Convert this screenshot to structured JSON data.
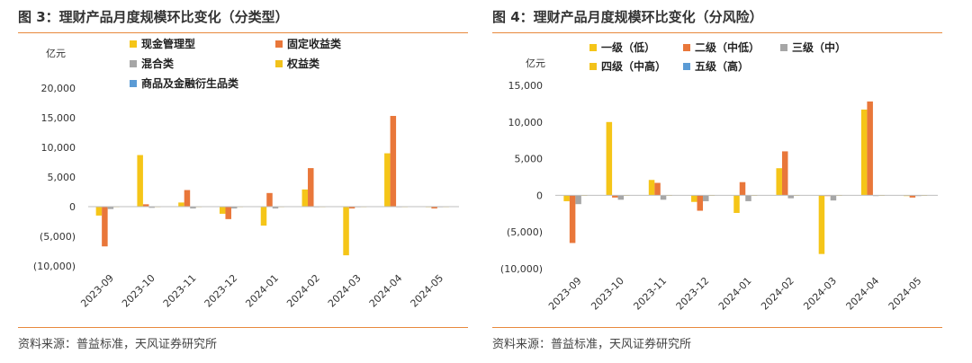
{
  "left_panel": {
    "title": "图 3：理财产品月度规模环比变化（分类型）",
    "source": "资料来源：普益标准，天风证券研究所"
  },
  "right_panel": {
    "title": "图 4：理财产品月度规模环比变化（分风险）",
    "source": "资料来源：普益标准，天风证券研究所"
  },
  "chart_data": [
    {
      "type": "bar",
      "ylabel": "亿元",
      "ylim": [
        -10000,
        20000
      ],
      "yticks": [
        20000,
        15000,
        10000,
        5000,
        0,
        -5000,
        -10000
      ],
      "ytick_labels": [
        "20,000",
        "15,000",
        "10,000",
        "5,000",
        "0",
        "(5,000)",
        "(10,000)"
      ],
      "categories": [
        "2023-09",
        "2023-10",
        "2023-11",
        "2023-12",
        "2024-01",
        "2024-02",
        "2024-03",
        "2024-04",
        "2024-05"
      ],
      "grid": false,
      "legend_position": "top",
      "series": [
        {
          "name": "现金管理型",
          "color": "#f5c518",
          "values": [
            -1500,
            8700,
            700,
            -1200,
            -3200,
            2900,
            -8200,
            9000,
            -100
          ]
        },
        {
          "name": "固定收益类",
          "color": "#e9773a",
          "values": [
            -6700,
            400,
            2800,
            -2100,
            2300,
            6500,
            -300,
            15300,
            -300
          ]
        },
        {
          "name": "混合类",
          "color": "#a6a6a6",
          "values": [
            -400,
            -200,
            -300,
            -300,
            -300,
            -100,
            -100,
            -100,
            -100
          ]
        },
        {
          "name": "权益类",
          "color": "#f2c21b",
          "values": [
            -20,
            -20,
            -20,
            -20,
            -20,
            -20,
            -20,
            -20,
            -20
          ]
        },
        {
          "name": "商品及金融衍生品类",
          "color": "#5b9bd5",
          "values": [
            0,
            0,
            0,
            0,
            0,
            0,
            0,
            0,
            0
          ]
        }
      ]
    },
    {
      "type": "bar",
      "ylabel": "亿元",
      "ylim": [
        -10000,
        15000
      ],
      "yticks": [
        15000,
        10000,
        5000,
        0,
        -5000,
        -10000
      ],
      "ytick_labels": [
        "15,000",
        "10,000",
        "5,000",
        "0",
        "(5,000)",
        "(10,000)"
      ],
      "categories": [
        "2023-09",
        "2023-10",
        "2023-11",
        "2023-12",
        "2024-01",
        "2024-02",
        "2024-03",
        "2024-04",
        "2024-05"
      ],
      "grid": false,
      "legend_position": "top",
      "series": [
        {
          "name": "一级（低）",
          "color": "#f5c518",
          "values": [
            -800,
            10000,
            2100,
            -900,
            -2400,
            3700,
            -8000,
            11700,
            -100
          ]
        },
        {
          "name": "二级（中低）",
          "color": "#e9773a",
          "values": [
            -6500,
            -300,
            1700,
            -2100,
            1800,
            6000,
            -100,
            12800,
            -300
          ]
        },
        {
          "name": "三级（中）",
          "color": "#a6a6a6",
          "values": [
            -1200,
            -600,
            -600,
            -800,
            -800,
            -400,
            -700,
            -100,
            -100
          ]
        },
        {
          "name": "四级（中高）",
          "color": "#f2c21b",
          "values": [
            -20,
            -20,
            -20,
            -20,
            -20,
            -20,
            -20,
            -20,
            -20
          ]
        },
        {
          "name": "五级（高）",
          "color": "#5b9bd5",
          "values": [
            0,
            0,
            0,
            0,
            0,
            0,
            0,
            0,
            0
          ]
        }
      ]
    }
  ]
}
